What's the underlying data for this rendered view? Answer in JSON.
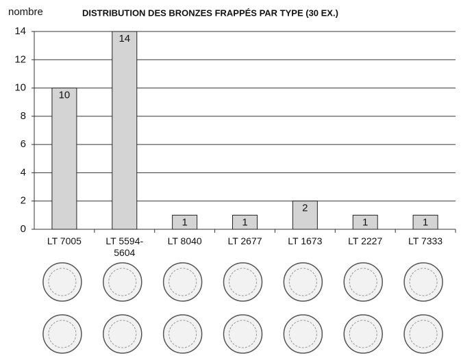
{
  "chart_data": {
    "type": "bar",
    "title": "DISTRIBUTION DES BRONZES FRAPPÉS PAR TYPE (30 EX.)",
    "y_label": "nombre",
    "categories": [
      "LT 7005",
      "LT 5594-5604",
      "LT 8040",
      "LT 2677",
      "LT 1673",
      "LT 2227",
      "LT 7333"
    ],
    "values": [
      10,
      14,
      1,
      1,
      2,
      1,
      1
    ],
    "color": "#d4d4d4",
    "ylim": [
      0,
      14
    ],
    "yticks": [
      0,
      2,
      4,
      6,
      8,
      10,
      12,
      14
    ],
    "grid": true
  }
}
